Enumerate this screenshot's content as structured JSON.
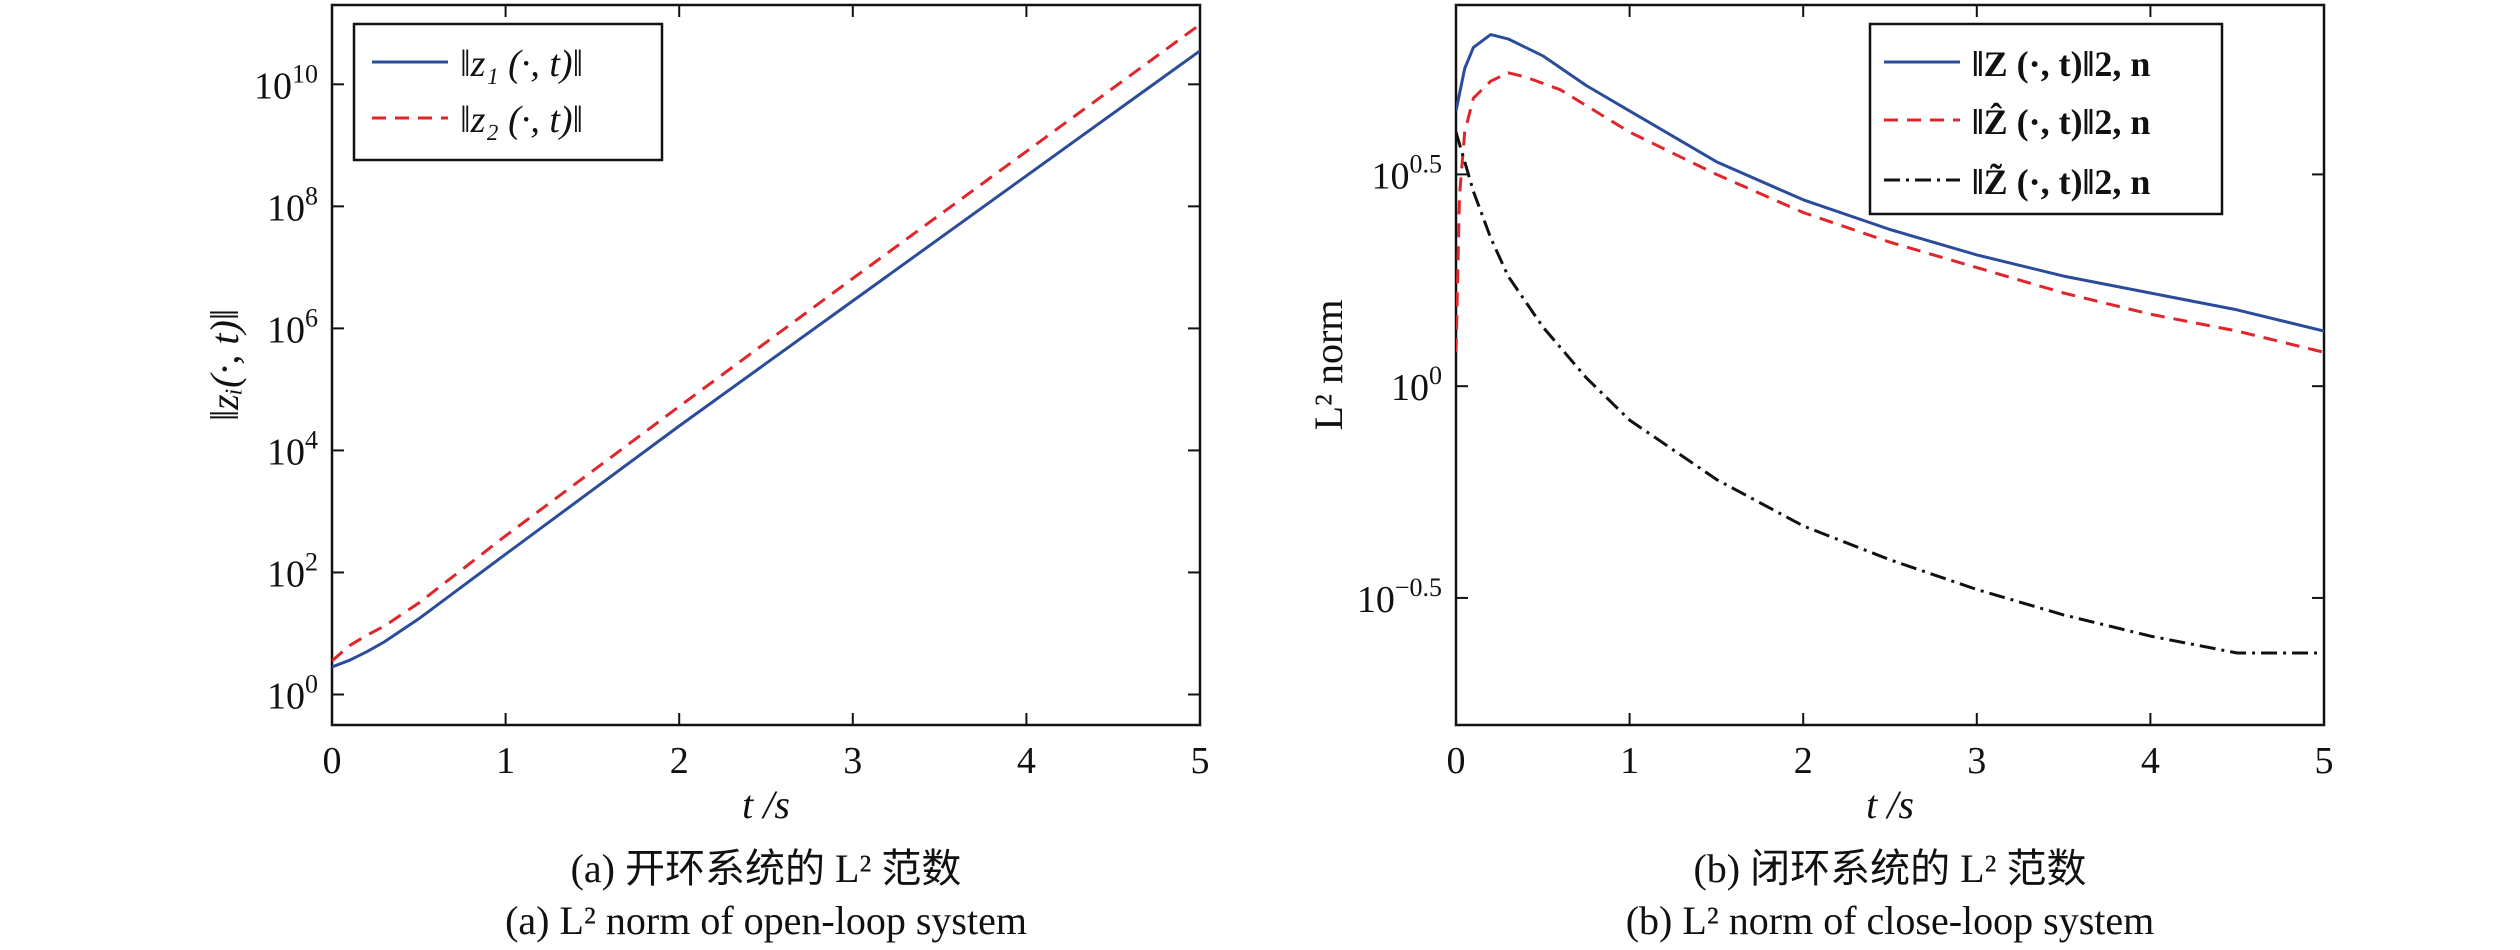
{
  "chart_data": [
    {
      "type": "line",
      "panel": "a",
      "xlabel": "t /s",
      "ylabel": "‖zᵢ(·, t)‖",
      "xlim": [
        0,
        5
      ],
      "ylim_log10": [
        -0.5,
        11.3
      ],
      "y_scale": "log",
      "x_ticks": [
        0,
        1,
        2,
        3,
        4,
        5
      ],
      "y_ticks": [
        {
          "exp": 0,
          "label_base": "10",
          "label_exp": "0"
        },
        {
          "exp": 2,
          "label_base": "10",
          "label_exp": "2"
        },
        {
          "exp": 4,
          "label_base": "10",
          "label_exp": "4"
        },
        {
          "exp": 6,
          "label_base": "10",
          "label_exp": "6"
        },
        {
          "exp": 8,
          "label_base": "10",
          "label_exp": "8"
        },
        {
          "exp": 10,
          "label_base": "10",
          "label_exp": "10"
        }
      ],
      "legend_position": "top-left",
      "series": [
        {
          "name": "‖z₁ (·, t)‖",
          "color": "#2b4c9b",
          "dash": "solid",
          "x": [
            0,
            0.1,
            0.2,
            0.3,
            0.5,
            1,
            2,
            3,
            4,
            5
          ],
          "log10_y": [
            0.45,
            0.56,
            0.7,
            0.86,
            1.24,
            2.3,
            4.4,
            6.45,
            8.5,
            10.55
          ]
        },
        {
          "name": "‖z₂ (·, t)‖",
          "color": "#e0262b",
          "dash": "dashed",
          "x": [
            0,
            0.1,
            0.2,
            0.3,
            0.5,
            1,
            2,
            3,
            4,
            5
          ],
          "log10_y": [
            0.55,
            0.8,
            0.97,
            1.12,
            1.5,
            2.6,
            4.72,
            6.82,
            8.9,
            10.98
          ]
        }
      ]
    },
    {
      "type": "line",
      "panel": "b",
      "xlabel": "t /s",
      "ylabel": "L² norm",
      "xlim": [
        0,
        5
      ],
      "ylim_log10": [
        -0.8,
        0.9
      ],
      "y_scale": "log",
      "x_ticks": [
        0,
        1,
        2,
        3,
        4,
        5
      ],
      "y_ticks": [
        {
          "exp": 0.5,
          "label_base": "10",
          "label_exp": "0.5"
        },
        {
          "exp": 0,
          "label_base": "10",
          "label_exp": "0"
        },
        {
          "exp": -0.5,
          "label_base": "10",
          "label_exp": "−0.5"
        }
      ],
      "legend_position": "top-right",
      "series": [
        {
          "name": "‖Z (·, t)‖2, n",
          "color": "#2b4c9b",
          "dash": "solid",
          "x": [
            0,
            0.05,
            0.1,
            0.2,
            0.3,
            0.5,
            0.75,
            1,
            1.5,
            2,
            2.5,
            3,
            3.5,
            4,
            4.5,
            5
          ],
          "log10_y": [
            0.65,
            0.75,
            0.8,
            0.83,
            0.82,
            0.78,
            0.71,
            0.65,
            0.53,
            0.44,
            0.37,
            0.31,
            0.26,
            0.22,
            0.18,
            0.13
          ]
        },
        {
          "name": "‖Ẑ (·, t)‖2, n",
          "color": "#e0262b",
          "dash": "dashed",
          "x": [
            0,
            0.02,
            0.05,
            0.1,
            0.2,
            0.3,
            0.4,
            0.6,
            0.8,
            1,
            1.5,
            2,
            2.5,
            3,
            3.5,
            4,
            4.5,
            5
          ],
          "log10_y": [
            0.08,
            0.45,
            0.6,
            0.68,
            0.72,
            0.74,
            0.73,
            0.7,
            0.65,
            0.6,
            0.5,
            0.41,
            0.34,
            0.28,
            0.22,
            0.17,
            0.13,
            0.08
          ]
        },
        {
          "name": "‖Z̃ (·, t)‖2, n",
          "color": "#111111",
          "dash": "dashdot",
          "x": [
            0,
            0.1,
            0.2,
            0.3,
            0.5,
            0.75,
            1,
            1.5,
            2,
            2.5,
            3,
            3.5,
            4,
            4.5,
            5
          ],
          "log10_y": [
            0.6,
            0.46,
            0.35,
            0.26,
            0.14,
            0.02,
            -0.08,
            -0.22,
            -0.33,
            -0.41,
            -0.48,
            -0.54,
            -0.59,
            -0.63,
            -0.63
          ]
        }
      ]
    }
  ],
  "captions": {
    "a_cn": "(a) 开环系统的 L² 范数",
    "a_en": "(a) L² norm of open-loop system",
    "b_cn": "(b) 闭环系统的 L² 范数",
    "b_en": "(b) L² norm of close-loop system"
  }
}
